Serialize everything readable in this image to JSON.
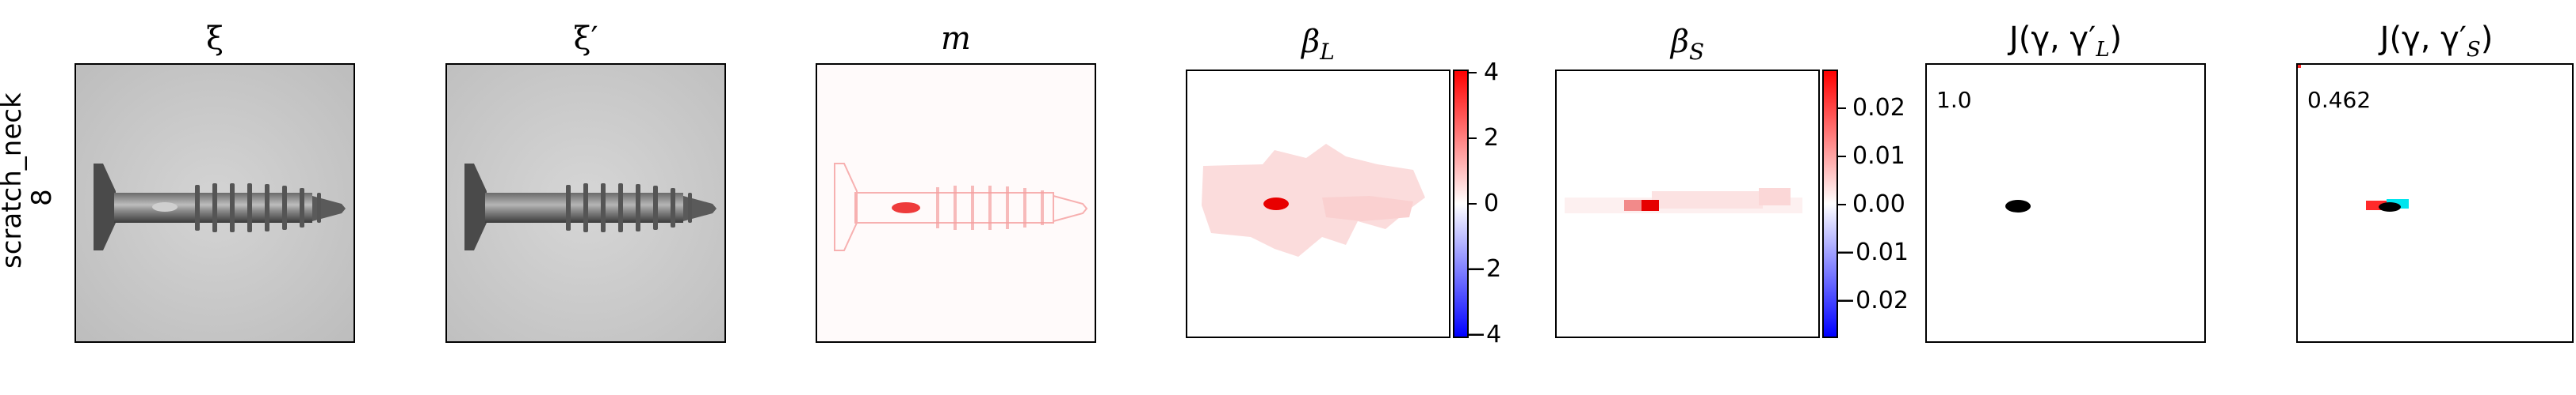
{
  "row": {
    "class_label": "scratch_neck",
    "index_label": "8"
  },
  "panels": {
    "xi": {
      "title": "ξ"
    },
    "xi_prime": {
      "title": "ξ′"
    },
    "m": {
      "title": "m"
    },
    "beta_L": {
      "title_main": "β",
      "title_sub": "L"
    },
    "beta_S": {
      "title_main": "β",
      "title_sub": "S"
    },
    "J_L": {
      "title": "J(γ, γ′",
      "title_sub": "L",
      "title_end": ")",
      "score": "1.0"
    },
    "J_S": {
      "title": "J(γ, γ′",
      "title_sub": "S",
      "title_end": ")",
      "score": "0.462"
    }
  },
  "colorbars": {
    "beta_L": {
      "ticks": [
        "4",
        "2",
        "0",
        "−2",
        "−4"
      ],
      "low_color": "#0000ff",
      "mid_color": "#ffffff",
      "high_color": "#ff0000"
    },
    "beta_S": {
      "ticks": [
        "0.02",
        "0.01",
        "0.00",
        "−0.01",
        "−0.02"
      ],
      "low_color": "#0000ff",
      "mid_color": "#ffffff",
      "high_color": "#ff0000"
    }
  },
  "colors": {
    "overlay_red": "#ff2a2a",
    "overlay_cyan": "#00e5ee",
    "overlay_black": "#000000"
  }
}
